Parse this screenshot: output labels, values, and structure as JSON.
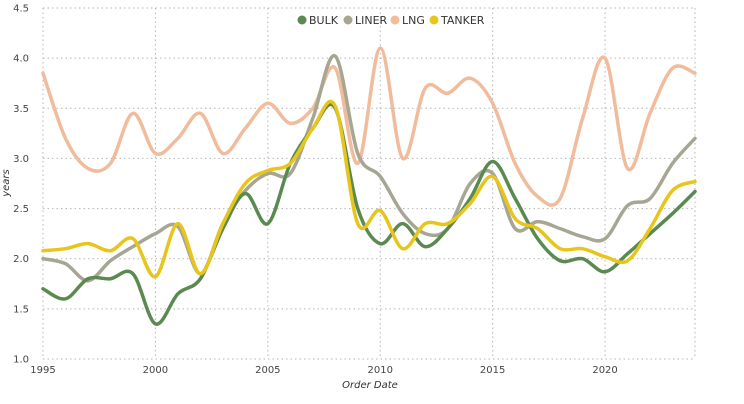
{
  "chart_data": {
    "type": "line",
    "xlabel": "Order Date",
    "ylabel": "years",
    "xlim": [
      1995,
      2024
    ],
    "ylim": [
      1.0,
      4.5
    ],
    "x_ticks": [
      1995,
      2000,
      2005,
      2010,
      2015,
      2020
    ],
    "y_ticks": [
      "1.0",
      "1.5",
      "2.0",
      "2.5",
      "3.0",
      "3.5",
      "4.0",
      "4.5"
    ],
    "grid": true,
    "legend_position": "top-center",
    "x": [
      1995,
      1996,
      1997,
      1998,
      1999,
      2000,
      2001,
      2002,
      2003,
      2004,
      2005,
      2006,
      2007,
      2008,
      2009,
      2010,
      2011,
      2012,
      2013,
      2014,
      2015,
      2016,
      2017,
      2018,
      2019,
      2020,
      2021,
      2022,
      2023,
      2024
    ],
    "series": [
      {
        "name": "BULK",
        "color": "#5a8a50",
        "values": [
          1.7,
          1.6,
          1.8,
          1.8,
          1.85,
          1.35,
          1.65,
          1.8,
          2.3,
          2.65,
          2.35,
          2.95,
          3.3,
          3.5,
          2.5,
          2.15,
          2.35,
          2.12,
          2.3,
          2.6,
          2.97,
          2.6,
          2.2,
          1.98,
          2.0,
          1.87,
          2.05,
          2.25,
          2.45,
          2.67
        ]
      },
      {
        "name": "LINER",
        "color": "#a6a692",
        "values": [
          2.0,
          1.95,
          1.78,
          1.98,
          2.12,
          2.25,
          2.32,
          1.85,
          2.35,
          2.68,
          2.85,
          2.85,
          3.4,
          4.02,
          3.05,
          2.82,
          2.45,
          2.25,
          2.3,
          2.75,
          2.85,
          2.3,
          2.37,
          2.3,
          2.22,
          2.2,
          2.53,
          2.6,
          2.95,
          3.2
        ]
      },
      {
        "name": "LNG",
        "color": "#f0bc9c",
        "values": [
          3.85,
          3.2,
          2.9,
          2.95,
          3.45,
          3.05,
          3.2,
          3.45,
          3.05,
          3.3,
          3.55,
          3.35,
          3.5,
          3.9,
          2.95,
          4.1,
          3.0,
          3.7,
          3.65,
          3.8,
          3.55,
          2.95,
          2.62,
          2.6,
          3.4,
          4.0,
          2.9,
          3.45,
          3.9,
          3.85
        ]
      },
      {
        "name": "TANKER",
        "color": "#e8c51c",
        "values": [
          2.08,
          2.1,
          2.15,
          2.08,
          2.2,
          1.82,
          2.35,
          1.85,
          2.35,
          2.75,
          2.88,
          2.95,
          3.3,
          3.52,
          2.35,
          2.48,
          2.1,
          2.35,
          2.35,
          2.55,
          2.82,
          2.4,
          2.3,
          2.1,
          2.1,
          2.02,
          1.98,
          2.3,
          2.68,
          2.77
        ]
      }
    ]
  }
}
